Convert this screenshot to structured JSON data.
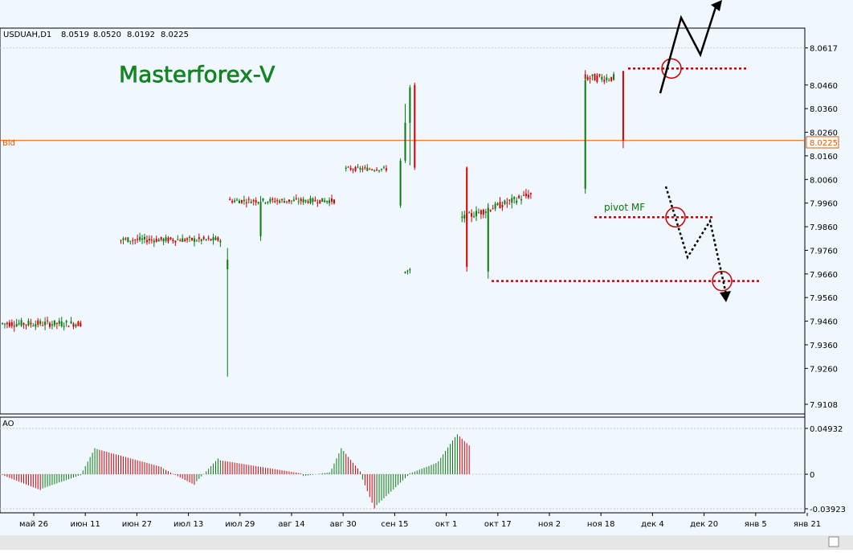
{
  "chart_data": [
    {
      "type": "candlestick",
      "symbol_label": "USDUAH,D1",
      "ohlc_header": [
        "8.0519",
        "8.0520",
        "8.0192",
        "8.0225"
      ],
      "watermark": "Masterforex-V",
      "bid_label": "Bid",
      "bid_value": 8.0225,
      "bid_value_text": "8.0225",
      "ylim": [
        7.9108,
        8.066
      ],
      "y_ticks": [
        "8.0617",
        "8.0460",
        "8.0360",
        "8.0260",
        "8.0160",
        "8.0060",
        "7.9960",
        "7.9860",
        "7.9760",
        "7.9660",
        "7.9560",
        "7.9460",
        "7.9360",
        "7.9260",
        "7.9108"
      ],
      "x_ticks": [
        "май 26",
        "июн 11",
        "июн 27",
        "июл 13",
        "июл 29",
        "авг 14",
        "авг 30",
        "сен 15",
        "окт 1",
        "окт 17",
        "ноя 2",
        "ноя 18",
        "дек 4",
        "дек 20",
        "янв 5",
        "янв 21"
      ],
      "segments": [
        {
          "from": "май 19",
          "count": 34,
          "level": 7.945,
          "spread": 0.003,
          "wick": 0.0022
        },
        {
          "from": "июн 20",
          "count": 43,
          "level": 7.9805,
          "spread": 0.0025,
          "wick": 0.002
        },
        {
          "from": "авг 5",
          "count": 45,
          "level": 7.997,
          "spread": 0.0022,
          "wick": 0.0018
        },
        {
          "from": "сен 23",
          "count": 18,
          "level": 8.0105,
          "spread": 0.0018,
          "wick": 0.0015
        },
        {
          "from": "окт 15",
          "count": 3,
          "level": 7.967,
          "spread": 0.0025,
          "wick": 0.002
        },
        {
          "from": "окт 20",
          "count": 30,
          "level": 7.993,
          "spread": 0.003,
          "wick": 0.0025
        },
        {
          "from": "ноя 20",
          "count": 13,
          "level": 8.049,
          "spread": 0.0035,
          "wick": 0.0022
        }
      ],
      "special_candles": [
        {
          "date": "июл 28",
          "open": 7.968,
          "high": 7.977,
          "low": 7.9225,
          "close": 7.972
        },
        {
          "date": "авг 5",
          "open": 7.982,
          "high": 7.999,
          "low": 7.98,
          "close": 7.996
        },
        {
          "date": "сен 15",
          "open": 7.995,
          "high": 8.015,
          "low": 7.994,
          "close": 8.014
        },
        {
          "date": "сен 16",
          "open": 8.014,
          "high": 8.038,
          "low": 8.013,
          "close": 8.03
        },
        {
          "date": "сен 17",
          "open": 8.03,
          "high": 8.046,
          "low": 8.012,
          "close": 8.045
        },
        {
          "date": "сен 18",
          "open": 8.046,
          "high": 8.047,
          "low": 8.01,
          "close": 8.011
        },
        {
          "date": "окт 14",
          "open": 8.011,
          "high": 8.0115,
          "low": 7.967,
          "close": 7.969
        },
        {
          "date": "окт 18",
          "open": 7.967,
          "high": 7.996,
          "low": 7.964,
          "close": 7.994
        },
        {
          "date": "ноя 19",
          "open": 8.002,
          "high": 8.05,
          "low": 8.0,
          "close": 8.048
        },
        {
          "date": "дек 3",
          "open": 8.0519,
          "high": 8.052,
          "low": 8.0192,
          "close": 8.0225
        }
      ],
      "annotations": {
        "pivot_label": "pivot MF",
        "pivot_level": 7.99,
        "support_level": 7.963,
        "resistance_level": 8.053
      },
      "colors": {
        "up": "#0a7a0a",
        "down": "#d40000",
        "bid": "#e35a00",
        "levels": "#c80000",
        "grid": "#c8c8c8",
        "background": "#f0f7ff"
      }
    },
    {
      "type": "bar",
      "label": "AO",
      "ylim": [
        -0.03923,
        0.04932
      ],
      "y_ticks": [
        "0.04932",
        "0",
        "-0.03923"
      ],
      "values_per_segment": [
        {
          "count": 17,
          "start": -0.001,
          "end": -0.018
        },
        {
          "count": 17,
          "start": -0.016,
          "end": -0.001
        },
        {
          "count": 6,
          "start": 0.004,
          "end": 0.028
        },
        {
          "count": 28,
          "start": 0.027,
          "end": 0.008
        },
        {
          "count": 14,
          "start": 0.006,
          "end": -0.012
        },
        {
          "count": 10,
          "start": -0.008,
          "end": 0.017
        },
        {
          "count": 35,
          "start": 0.015,
          "end": 0.001
        },
        {
          "count": 12,
          "start": -0.002,
          "end": 0.002
        },
        {
          "count": 5,
          "start": 0.006,
          "end": 0.028
        },
        {
          "count": 8,
          "start": 0.025,
          "end": 0.003
        },
        {
          "count": 6,
          "start": -0.006,
          "end": -0.039
        },
        {
          "count": 14,
          "start": -0.035,
          "end": -0.002
        },
        {
          "count": 12,
          "start": 0.001,
          "end": 0.012
        },
        {
          "count": 8,
          "start": 0.014,
          "end": 0.04
        },
        {
          "count": 6,
          "start": 0.043,
          "end": 0.031
        }
      ],
      "colors": {
        "up": "#0a7a0a",
        "down": "#d40000"
      }
    }
  ]
}
